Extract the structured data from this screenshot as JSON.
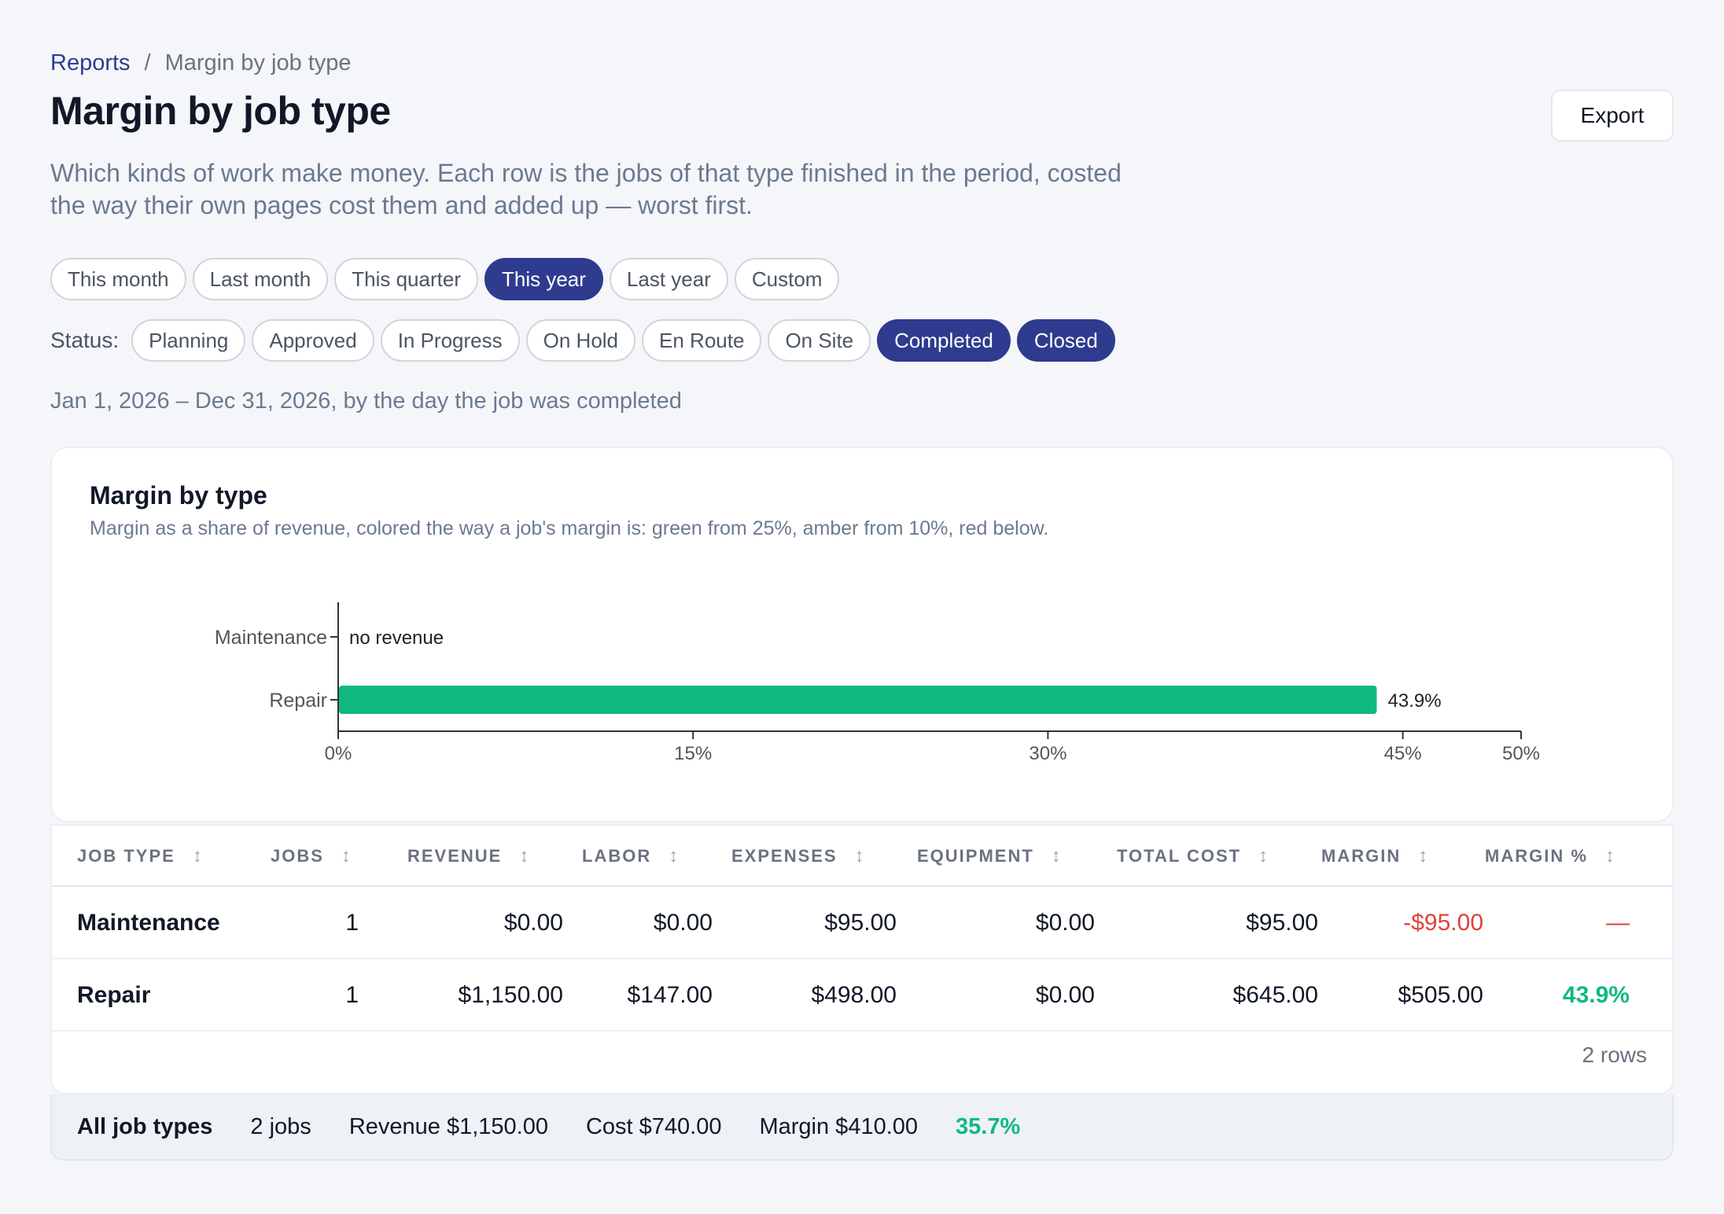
{
  "breadcrumb": {
    "parent": "Reports",
    "separator": "/",
    "current": "Margin by job type"
  },
  "page_title": "Margin by job type",
  "export_label": "Export",
  "description": "Which kinds of work make money. Each row is the jobs of that type finished in the period, costed the way their own pages cost them and added up — worst first.",
  "period_filters": [
    {
      "label": "This month",
      "active": false
    },
    {
      "label": "Last month",
      "active": false
    },
    {
      "label": "This quarter",
      "active": false
    },
    {
      "label": "This year",
      "active": true
    },
    {
      "label": "Last year",
      "active": false
    },
    {
      "label": "Custom",
      "active": false
    }
  ],
  "status_label": "Status:",
  "status_filters": [
    {
      "label": "Planning",
      "active": false
    },
    {
      "label": "Approved",
      "active": false
    },
    {
      "label": "In Progress",
      "active": false
    },
    {
      "label": "On Hold",
      "active": false
    },
    {
      "label": "En Route",
      "active": false
    },
    {
      "label": "On Site",
      "active": false
    },
    {
      "label": "Completed",
      "active": true
    },
    {
      "label": "Closed",
      "active": true
    }
  ],
  "range_text": "Jan 1, 2026 – Dec 31, 2026, by the day the job was completed",
  "chart_card": {
    "title": "Margin by type",
    "subtitle": "Margin as a share of revenue, colored the way a job's margin is: green from 25%, amber from 10%, red below."
  },
  "chart_data": {
    "type": "bar",
    "orientation": "horizontal",
    "categories": [
      "Maintenance",
      "Repair"
    ],
    "values": [
      null,
      43.9
    ],
    "value_labels": [
      "no revenue",
      "43.9%"
    ],
    "bar_colors": [
      "#10b981",
      "#10b981"
    ],
    "xlim": [
      0,
      50
    ],
    "x_ticks": [
      0,
      15,
      30,
      45,
      50
    ],
    "x_tick_labels": [
      "0%",
      "15%",
      "30%",
      "45%",
      "50%"
    ],
    "grid": false,
    "thresholds": {
      "green_from": 25,
      "amber_from": 10
    }
  },
  "table": {
    "columns": [
      "JOB TYPE",
      "JOBS",
      "REVENUE",
      "LABOR",
      "EXPENSES",
      "EQUIPMENT",
      "TOTAL COST",
      "MARGIN",
      "MARGIN %"
    ],
    "sort_icon": "↕",
    "rows": [
      {
        "job_type": "Maintenance",
        "jobs": "1",
        "revenue": "$0.00",
        "labor": "$0.00",
        "expenses": "$95.00",
        "equipment": "$0.00",
        "total_cost": "$95.00",
        "margin": "-$95.00",
        "margin_pct": "—",
        "margin_state": "negative"
      },
      {
        "job_type": "Repair",
        "jobs": "1",
        "revenue": "$1,150.00",
        "labor": "$147.00",
        "expenses": "$498.00",
        "equipment": "$0.00",
        "total_cost": "$645.00",
        "margin": "$505.00",
        "margin_pct": "43.9%",
        "margin_state": "positive"
      }
    ],
    "row_count": "2 rows"
  },
  "totals": {
    "label": "All job types",
    "jobs": "2 jobs",
    "revenue": "Revenue $1,150.00",
    "cost": "Cost $740.00",
    "margin": "Margin $410.00",
    "margin_pct": "35.7%"
  },
  "colors": {
    "accent": "#2f3b8f",
    "positive": "#10b981",
    "negative": "#e0413a"
  }
}
